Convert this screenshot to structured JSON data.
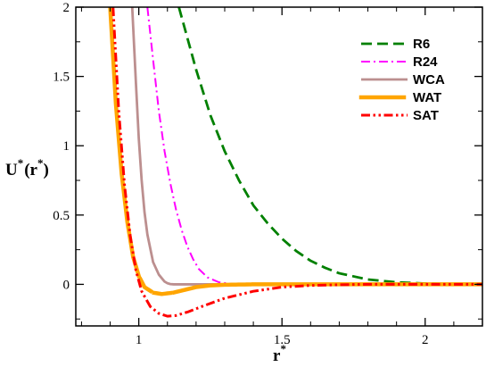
{
  "chart_data": {
    "type": "line",
    "xlabel": "r",
    "xlabel_sup": "*",
    "ylabel": "U",
    "ylabel_sup": "*",
    "ylabel_arg": "(r",
    "ylabel_arg_sup": "*",
    "ylabel_close": ")",
    "xlim": [
      0.78,
      2.2
    ],
    "ylim": [
      -0.3,
      2.0
    ],
    "xticks": [
      1,
      1.5,
      2
    ],
    "xtick_labels": [
      "1",
      "1.5",
      "2"
    ],
    "yticks": [
      0,
      0.5,
      1,
      1.5,
      2
    ],
    "ytick_labels": [
      "0",
      "0.5",
      "1",
      "1.5",
      "2"
    ],
    "grid": false,
    "legend_position": "top-right",
    "series": [
      {
        "name": "R6",
        "color": "#008000",
        "style": "dashed",
        "x": [
          1.14,
          1.16,
          1.2,
          1.25,
          1.3,
          1.35,
          1.4,
          1.45,
          1.5,
          1.55,
          1.6,
          1.65,
          1.7,
          1.8,
          1.9,
          2.0,
          2.1,
          2.2
        ],
        "y": [
          2.0,
          1.85,
          1.55,
          1.22,
          0.96,
          0.75,
          0.57,
          0.44,
          0.33,
          0.24,
          0.17,
          0.12,
          0.08,
          0.035,
          0.015,
          0.006,
          0.002,
          0.0
        ]
      },
      {
        "name": "R24",
        "color": "#ff00ff",
        "style": "dashdot",
        "x": [
          1.03,
          1.05,
          1.07,
          1.09,
          1.11,
          1.13,
          1.15,
          1.17,
          1.19,
          1.21,
          1.24,
          1.28,
          1.32,
          1.4,
          1.6,
          2.2
        ],
        "y": [
          2.0,
          1.62,
          1.25,
          0.96,
          0.73,
          0.54,
          0.39,
          0.27,
          0.18,
          0.11,
          0.05,
          0.015,
          0.004,
          0.0,
          0.0,
          0.0
        ]
      },
      {
        "name": "WCA",
        "color": "#bc8f8f",
        "style": "solid",
        "x": [
          0.977,
          0.99,
          1.0,
          1.01,
          1.02,
          1.03,
          1.05,
          1.07,
          1.09,
          1.1,
          1.11,
          1.122,
          1.15,
          1.5,
          2.2
        ],
        "y": [
          2.0,
          1.45,
          1.05,
          0.75,
          0.52,
          0.36,
          0.16,
          0.07,
          0.02,
          0.008,
          0.002,
          0.0,
          0.0,
          0.0,
          0.0
        ]
      },
      {
        "name": "WAT",
        "color": "#ffa500",
        "style": "dotted",
        "x": [
          0.9,
          0.92,
          0.94,
          0.96,
          0.98,
          1.0,
          1.02,
          1.05,
          1.08,
          1.12,
          1.16,
          1.2,
          1.25,
          1.3,
          1.4,
          1.6,
          2.2
        ],
        "y": [
          2.0,
          1.3,
          0.8,
          0.45,
          0.2,
          0.06,
          -0.02,
          -0.06,
          -0.07,
          -0.06,
          -0.04,
          -0.02,
          -0.008,
          -0.003,
          0.0,
          0.0,
          0.0
        ]
      },
      {
        "name": "SAT",
        "color": "#ff0000",
        "style": "dashdotdot",
        "x": [
          0.91,
          0.93,
          0.95,
          0.97,
          0.99,
          1.01,
          1.04,
          1.07,
          1.1,
          1.13,
          1.17,
          1.22,
          1.3,
          1.4,
          1.5,
          1.6,
          1.7,
          1.8,
          2.2
        ],
        "y": [
          2.0,
          1.25,
          0.72,
          0.35,
          0.1,
          -0.05,
          -0.16,
          -0.21,
          -0.23,
          -0.225,
          -0.2,
          -0.16,
          -0.1,
          -0.05,
          -0.02,
          -0.008,
          -0.003,
          0.0,
          0.0
        ]
      }
    ]
  }
}
